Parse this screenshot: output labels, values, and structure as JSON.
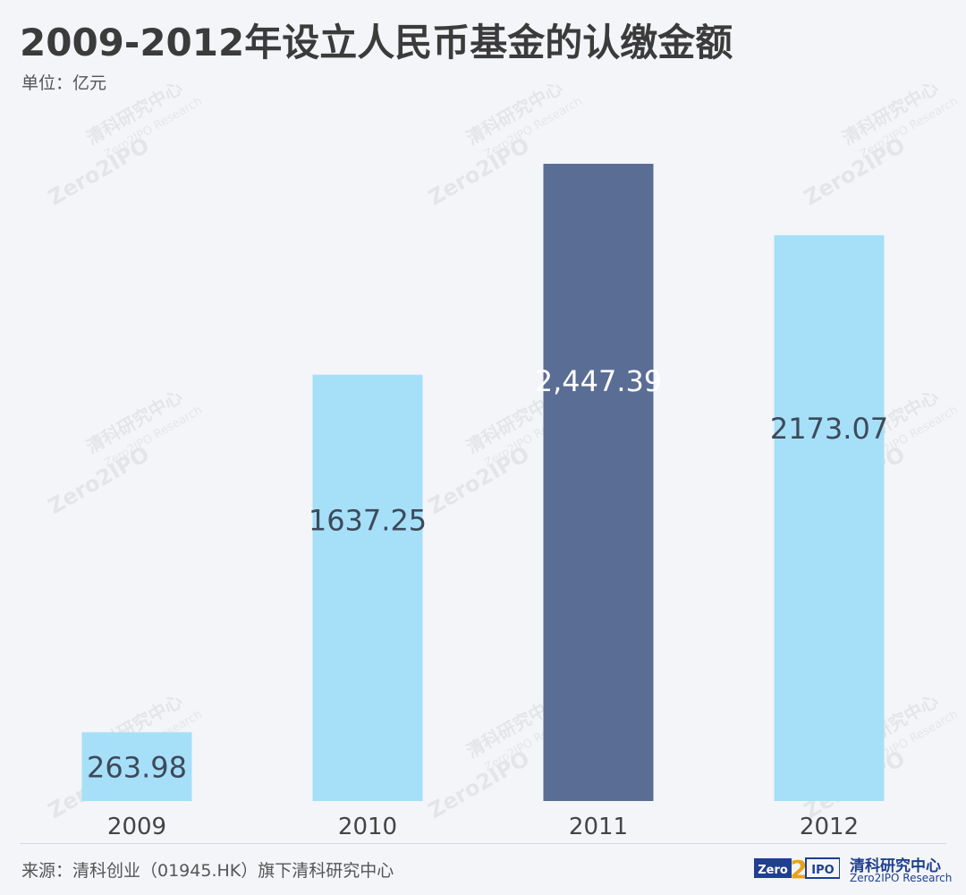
{
  "header": {
    "title": "2009-2012年设立人民币基金的认缴金额",
    "unit": "单位：亿元"
  },
  "footer": {
    "source": "来源：清科创业（01945.HK）旗下清科研究中心",
    "brand_cn": "清科研究中心",
    "brand_en": "Zero2IPO Research",
    "logo_text": "Zero2IPO"
  },
  "watermark": {
    "cn": "清科研究中心",
    "en": "Zero2IPO Research",
    "logo": "Zero2IPO"
  },
  "chart_data": {
    "type": "bar",
    "title": "2009-2012年设立人民币基金的认缴金额",
    "categories": [
      "2009",
      "2010",
      "2011",
      "2012"
    ],
    "values": [
      263.98,
      1637.25,
      2447.39,
      2173.07
    ],
    "data_labels": [
      "263.98",
      "1637.25",
      "2,447.39",
      "2173.07"
    ],
    "colors": [
      "#a6dff8",
      "#a6dff8",
      "#5a6d94",
      "#a6dff8"
    ],
    "label_colors": [
      "#3d4a5a",
      "#3d4a5a",
      "#ffffff",
      "#3d4a5a"
    ],
    "ylim": [
      0,
      2447.39
    ],
    "grid": false,
    "legend": "none"
  }
}
